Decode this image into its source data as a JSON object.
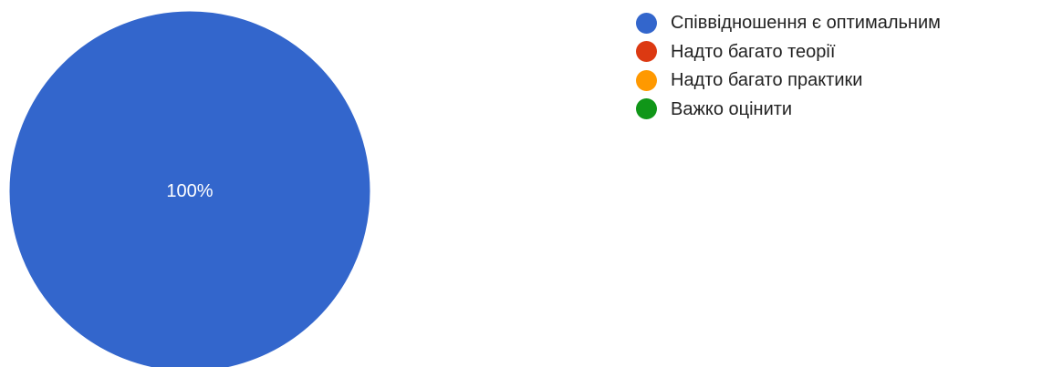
{
  "chart_data": {
    "type": "pie",
    "title": "",
    "legend_position": "right",
    "slices": [
      {
        "label": "Співвідношення є оптимальним",
        "value": 100,
        "color": "#3366cc",
        "data_label": "100%"
      },
      {
        "label": "Надто багато теорії",
        "value": 0,
        "color": "#dc3912"
      },
      {
        "label": "Надто багато практики",
        "value": 0,
        "color": "#ff9900"
      },
      {
        "label": "Важко оцінити",
        "value": 0,
        "color": "#109618"
      }
    ]
  }
}
